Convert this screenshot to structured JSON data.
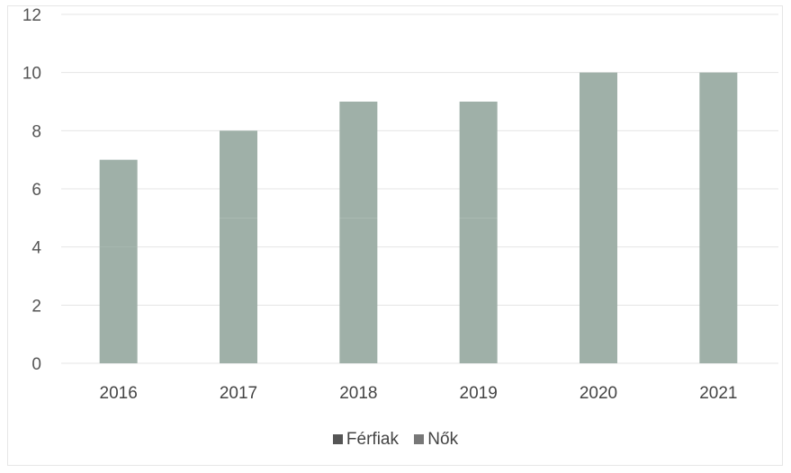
{
  "chart_data": {
    "type": "bar",
    "categories": [
      "2016",
      "2017",
      "2018",
      "2019",
      "2020",
      "2021"
    ],
    "series": [
      {
        "name": "Férfiak",
        "values": [
          4,
          5,
          5,
          5,
          6,
          6
        ],
        "color": "#9fb0a8"
      },
      {
        "name": "Nők",
        "values": [
          3,
          3,
          4,
          4,
          4,
          4
        ],
        "color": "#9fb0a8"
      }
    ],
    "stacked": true,
    "ylim": [
      0,
      12
    ],
    "yticks": [
      "0",
      "2",
      "4",
      "6",
      "8",
      "10",
      "12"
    ],
    "grid": true,
    "legend_position": "bottom",
    "title": "",
    "xlabel": "",
    "ylabel": ""
  }
}
